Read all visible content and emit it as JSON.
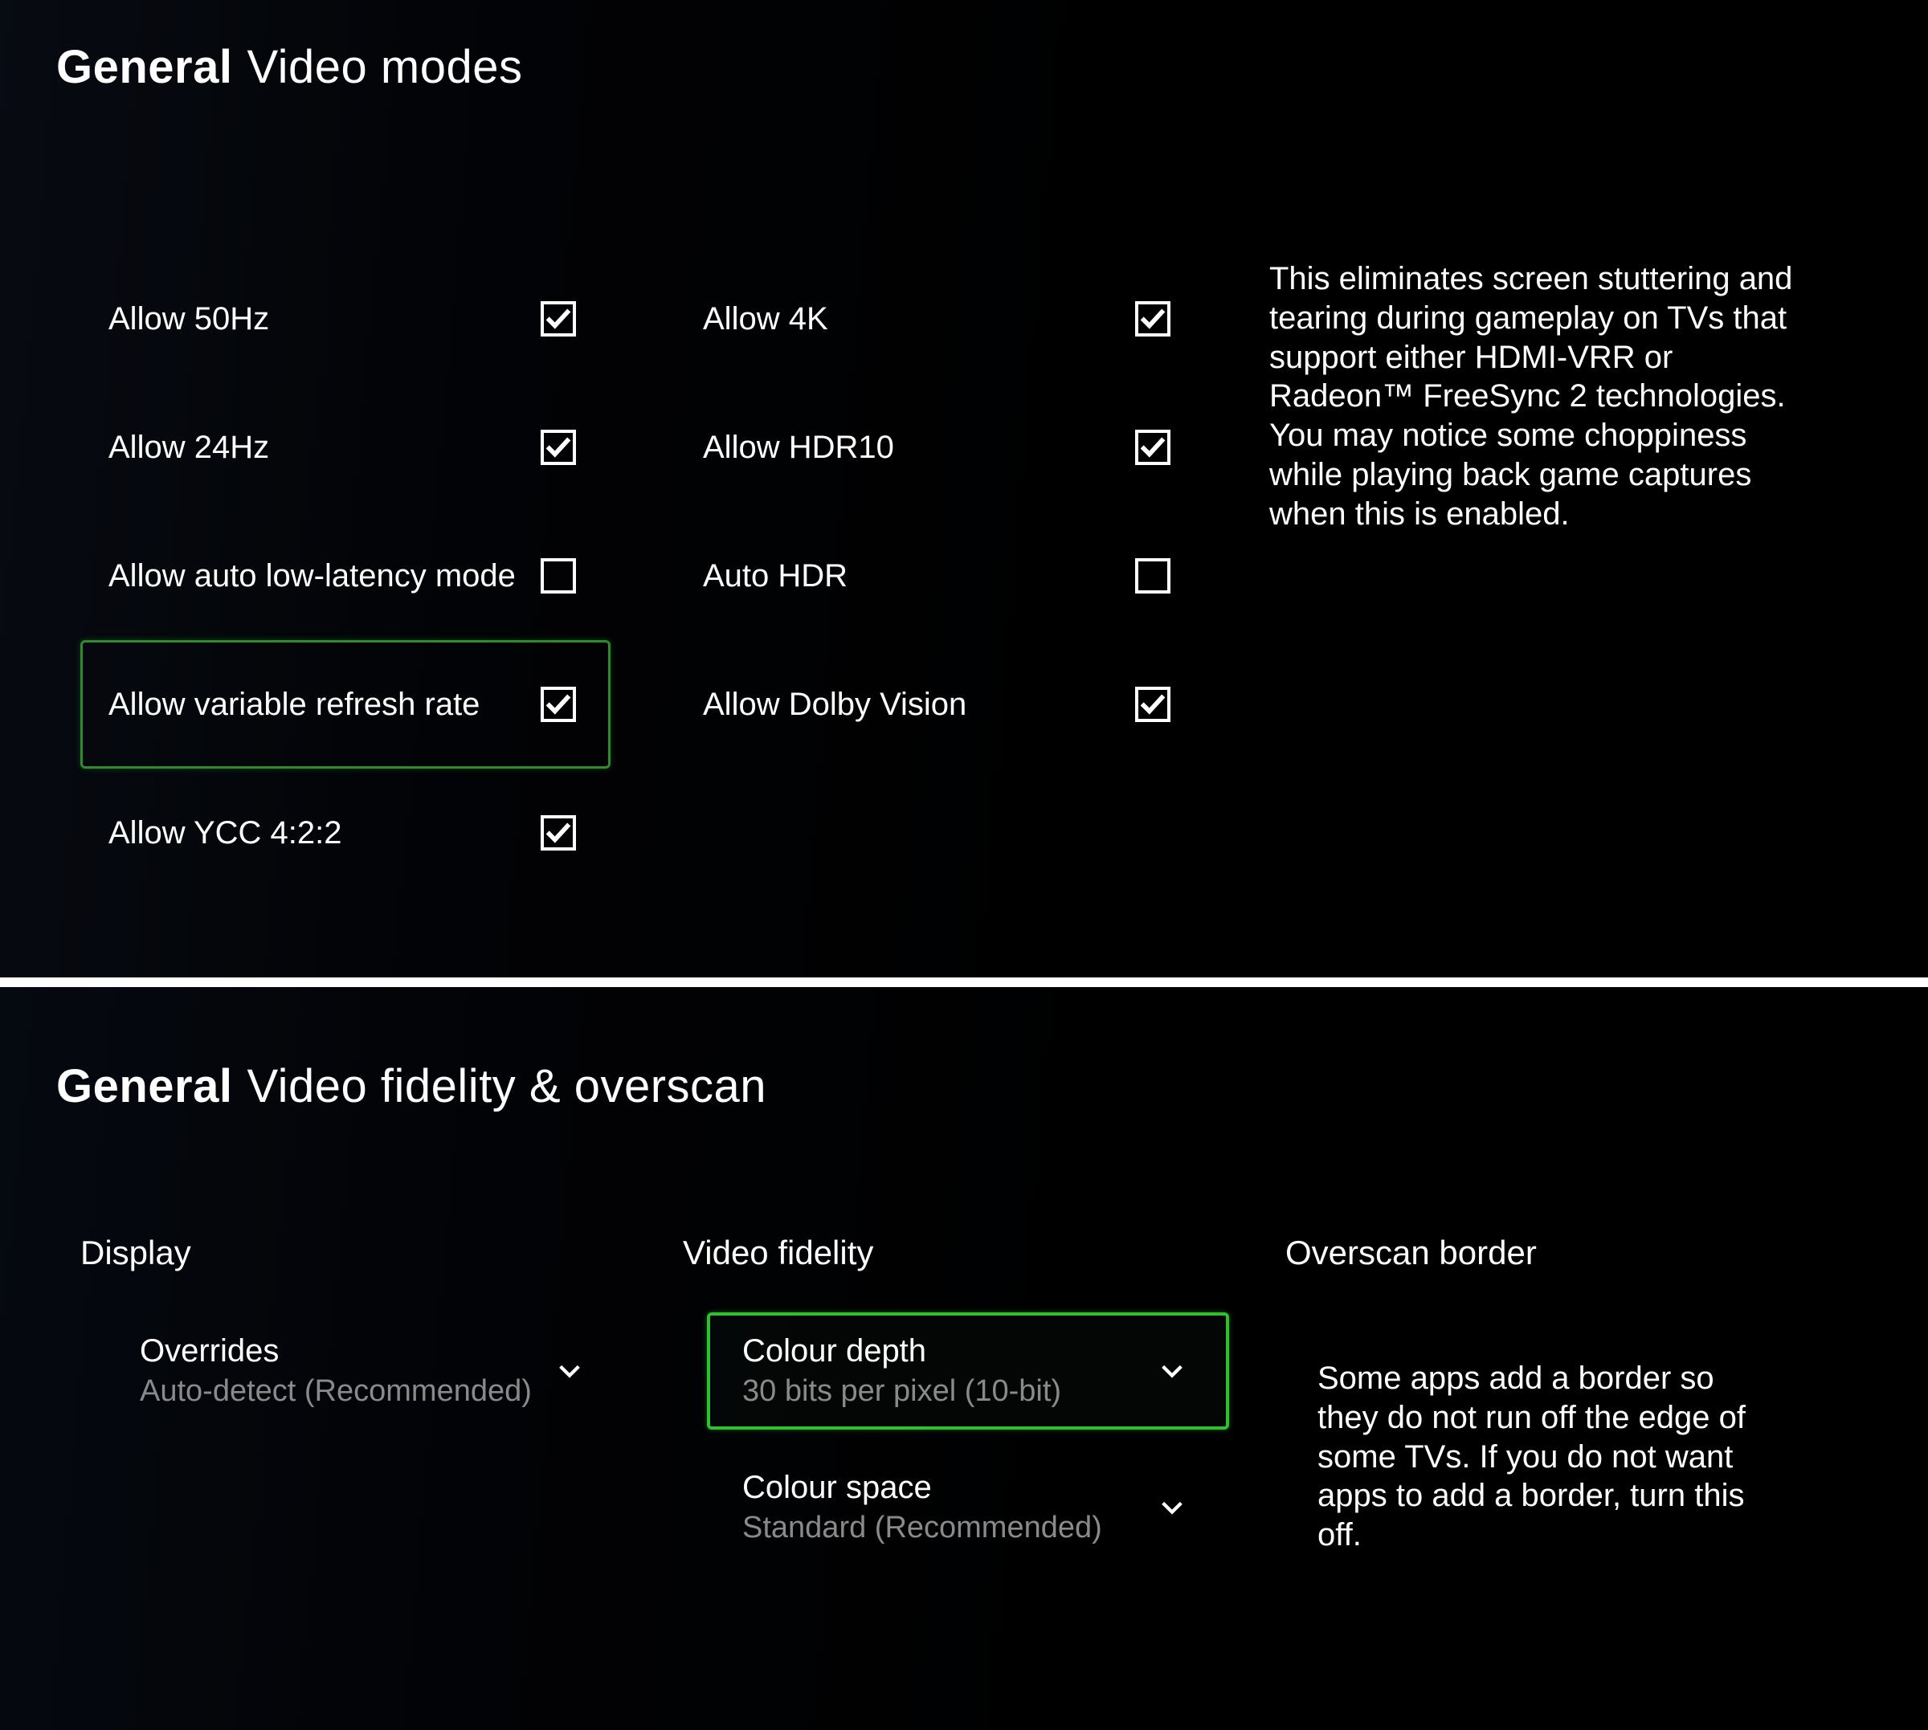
{
  "upper": {
    "breadcrumb_bold": "General",
    "breadcrumb_rest": "Video modes",
    "col1": [
      {
        "label": "Allow 50Hz",
        "checked": true,
        "focused": false
      },
      {
        "label": "Allow 24Hz",
        "checked": true,
        "focused": false
      },
      {
        "label": "Allow auto low-latency mode",
        "checked": false,
        "focused": false
      },
      {
        "label": "Allow variable refresh rate",
        "checked": true,
        "focused": true
      },
      {
        "label": "Allow YCC 4:2:2",
        "checked": true,
        "focused": false
      }
    ],
    "col2": [
      {
        "label": "Allow 4K",
        "checked": true,
        "focused": false
      },
      {
        "label": "Allow HDR10",
        "checked": true,
        "focused": false
      },
      {
        "label": "Auto HDR",
        "checked": false,
        "focused": false
      },
      {
        "label": "Allow Dolby Vision",
        "checked": true,
        "focused": false
      }
    ],
    "description": "This eliminates screen stuttering and tearing during gameplay on TVs that support either HDMI-VRR or Radeon™ FreeSync 2 technologies. You may notice some choppiness while playing back game captures when this is enabled."
  },
  "lower": {
    "breadcrumb_bold": "General",
    "breadcrumb_rest": "Video fidelity & overscan",
    "display": {
      "heading": "Display",
      "overrides": {
        "title": "Overrides",
        "value": "Auto-detect (Recommended)",
        "focused": false
      }
    },
    "fidelity": {
      "heading": "Video fidelity",
      "colour_depth": {
        "title": "Colour depth",
        "value": "30 bits per pixel (10-bit)",
        "focused": true
      },
      "colour_space": {
        "title": "Colour space",
        "value": "Standard (Recommended)",
        "focused": false
      }
    },
    "overscan": {
      "heading": "Overscan border",
      "description": "Some apps add a border so they do not run off the edge of some TVs. If you do not want apps to add a border, turn this off."
    }
  },
  "colors": {
    "focus_border": "#2fbf2f",
    "text": "#ffffff",
    "muted": "#8a8a8a",
    "bg": "#000000"
  }
}
